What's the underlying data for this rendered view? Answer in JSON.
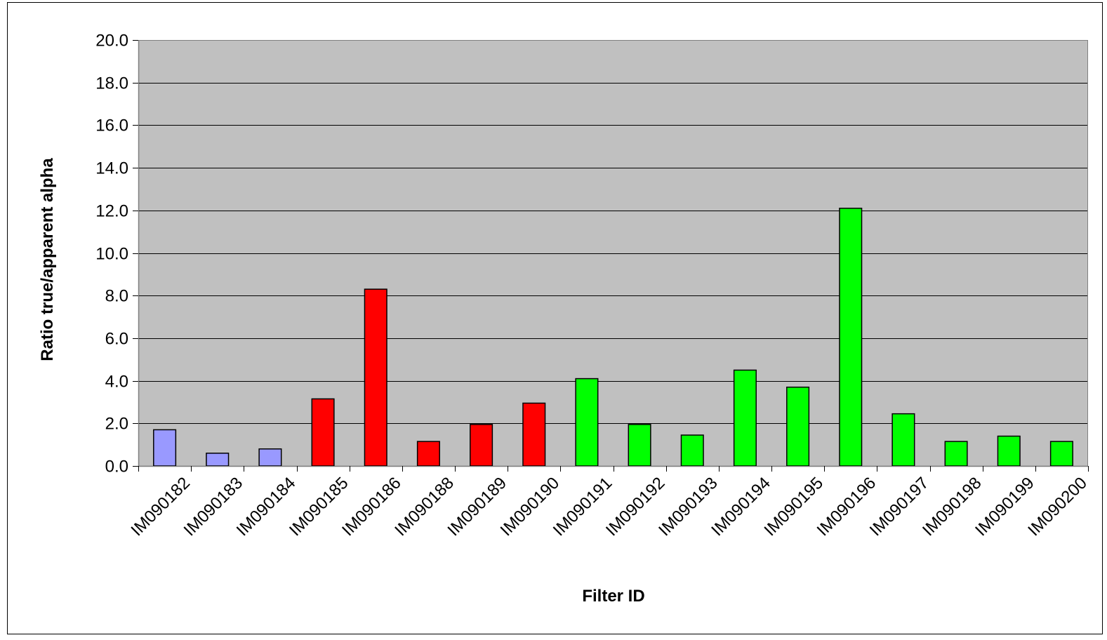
{
  "chart_data": {
    "type": "bar",
    "title": "",
    "xlabel": "Filter ID",
    "ylabel": "Ratio true/apparent alpha",
    "ylim": [
      0,
      20
    ],
    "yticks": [
      "0.0",
      "2.0",
      "4.0",
      "6.0",
      "8.0",
      "10.0",
      "12.0",
      "14.0",
      "16.0",
      "18.0",
      "20.0"
    ],
    "ytick_values": [
      0,
      2,
      4,
      6,
      8,
      10,
      12,
      14,
      16,
      18,
      20
    ],
    "grid": true,
    "legend": "none",
    "colors": {
      "plot_background": "#c0c0c0",
      "grid": "#000000",
      "bar_outline": "#000000"
    },
    "categories": [
      "IM090182",
      "IM090183",
      "IM090184",
      "IM090185",
      "IM090186",
      "IM090188",
      "IM090189",
      "IM090190",
      "IM090191",
      "IM090192",
      "IM090193",
      "IM090194",
      "IM090195",
      "IM090196",
      "IM090197",
      "IM090198",
      "IM090199",
      "IM090200"
    ],
    "values": [
      1.7,
      0.6,
      0.8,
      3.15,
      8.3,
      1.15,
      1.95,
      2.95,
      4.1,
      1.95,
      1.45,
      4.5,
      3.7,
      12.1,
      2.45,
      1.15,
      1.4,
      1.15
    ],
    "bar_colors": [
      "#9999ff",
      "#9999ff",
      "#9999ff",
      "#ff0000",
      "#ff0000",
      "#ff0000",
      "#ff0000",
      "#ff0000",
      "#00ff00",
      "#00ff00",
      "#00ff00",
      "#00ff00",
      "#00ff00",
      "#00ff00",
      "#00ff00",
      "#00ff00",
      "#00ff00",
      "#00ff00"
    ]
  }
}
